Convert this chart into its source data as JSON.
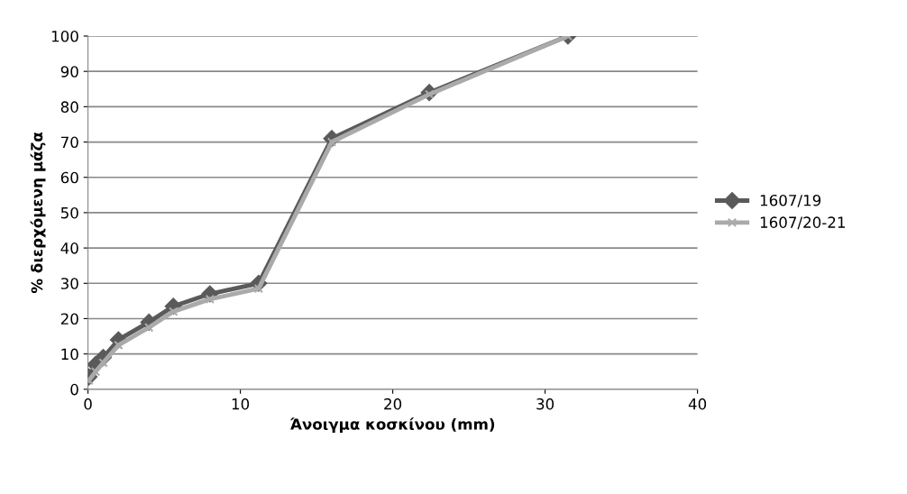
{
  "chart_data": {
    "type": "line",
    "xlabel": "Άνοιγμα κοσκίνου (mm)",
    "ylabel": "% διερχόμενη μάζα",
    "x": [
      0.063,
      0.5,
      1,
      2,
      4,
      5.6,
      8,
      11.2,
      16,
      22.4,
      31.5
    ],
    "series": [
      {
        "name": "1607/19",
        "color": "#5a5a5a",
        "marker": "diamond",
        "values": [
          3.5,
          7,
          9,
          14,
          19,
          23.5,
          27,
          30,
          71,
          84,
          100
        ]
      },
      {
        "name": "1607/20-21",
        "color": "#aaaaaa",
        "marker": "cross",
        "values": [
          2.5,
          5,
          7.5,
          12.5,
          17.5,
          22,
          25.5,
          28.5,
          70,
          83.5,
          100
        ]
      }
    ],
    "xlim": [
      0,
      40
    ],
    "xticks": [
      0,
      10,
      20,
      30,
      40
    ],
    "ylim": [
      0,
      100
    ],
    "yticks": [
      0,
      10,
      20,
      30,
      40,
      50,
      60,
      70,
      80,
      90,
      100
    ],
    "grid": "y",
    "legend": "right"
  }
}
